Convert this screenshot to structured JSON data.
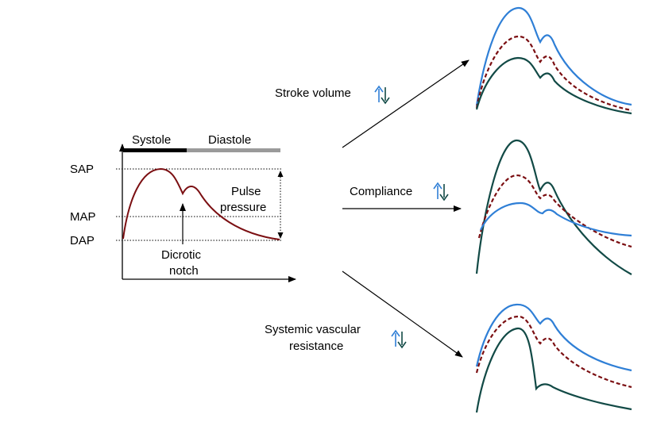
{
  "main_plot": {
    "phases": {
      "systole": "Systole",
      "diastole": "Diastole"
    },
    "levels": {
      "sap": "SAP",
      "map": "MAP",
      "dap": "DAP"
    },
    "pulse_pressure": {
      "line1": "Pulse",
      "line2": "pressure"
    },
    "dicrotic_notch": {
      "line1": "Dicrotic",
      "line2": "notch"
    }
  },
  "factors": {
    "stroke_volume": {
      "line1": "Stroke volume",
      "line2": ""
    },
    "compliance": {
      "line1": "Compliance",
      "line2": ""
    },
    "svr": {
      "line1": "Systemic vascular",
      "line2": "resistance"
    }
  },
  "colors": {
    "waveform": "#7b0f12",
    "baseline_dashed": "#7b0f12",
    "increase": "#2f7fd6",
    "decrease": "#124a46",
    "up_arrow": "#2f7fd6",
    "down_arrow": "#124a46",
    "systole_bar": "#000000",
    "diastole_bar": "#9a9a9a"
  }
}
